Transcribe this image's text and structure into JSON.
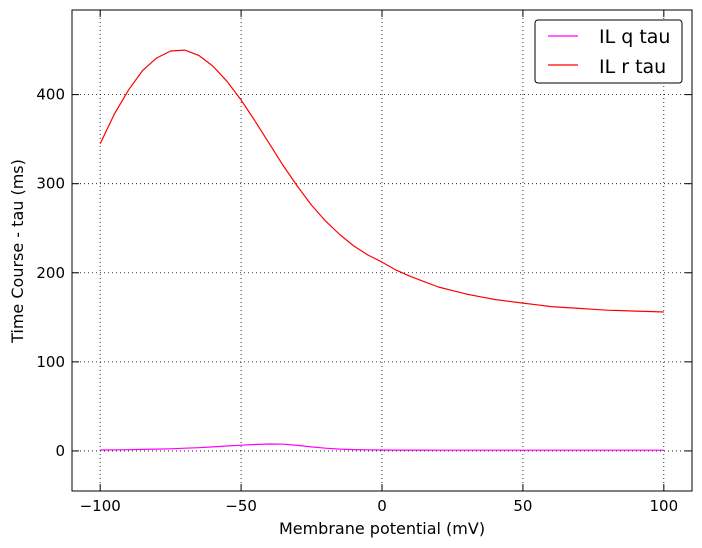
{
  "chart_data": {
    "type": "line",
    "xlabel": "Membrane potential (mV)",
    "ylabel": "Time Course - tau (ms)",
    "xlim": [
      -110,
      110
    ],
    "ylim": [
      -45,
      495
    ],
    "xticks": [
      -100,
      -50,
      0,
      50,
      100
    ],
    "yticks": [
      0,
      100,
      200,
      300,
      400
    ],
    "xtick_labels": [
      "−100",
      "−50",
      "0",
      "50",
      "100"
    ],
    "ytick_labels": [
      "0",
      "100",
      "200",
      "300",
      "400"
    ],
    "grid": true,
    "legend_position": "top-right",
    "x": [
      -100,
      -95,
      -90,
      -85,
      -80,
      -75,
      -70,
      -65,
      -60,
      -55,
      -50,
      -45,
      -40,
      -35,
      -30,
      -25,
      -20,
      -15,
      -10,
      -5,
      0,
      5,
      10,
      15,
      20,
      25,
      30,
      35,
      40,
      45,
      50,
      55,
      60,
      65,
      70,
      75,
      80,
      85,
      90,
      95,
      100
    ],
    "series": [
      {
        "name": "IL q tau",
        "color": "#ff00ff",
        "values": [
          1.0,
          1.2,
          1.4,
          1.7,
          2.0,
          2.4,
          3.0,
          3.6,
          4.5,
          5.5,
          6.4,
          7.2,
          7.8,
          7.5,
          6.2,
          4.5,
          3.0,
          2.0,
          1.5,
          1.2,
          1.0,
          0.9,
          0.9,
          0.9,
          0.8,
          0.8,
          0.8,
          0.8,
          0.8,
          0.8,
          0.8,
          0.8,
          0.8,
          0.8,
          0.8,
          0.8,
          0.8,
          0.8,
          0.8,
          0.8,
          0.8
        ]
      },
      {
        "name": "IL r tau",
        "color": "#ff0000",
        "values": [
          345,
          378,
          405,
          427,
          441,
          449,
          450,
          444,
          432,
          415,
          394,
          370,
          345,
          320,
          297,
          276,
          258,
          243,
          230,
          220,
          212,
          203,
          196,
          190,
          184,
          180,
          176,
          173,
          170,
          168,
          166,
          164,
          162,
          161,
          160,
          159,
          158,
          157.5,
          157,
          156.5,
          156
        ]
      }
    ]
  }
}
